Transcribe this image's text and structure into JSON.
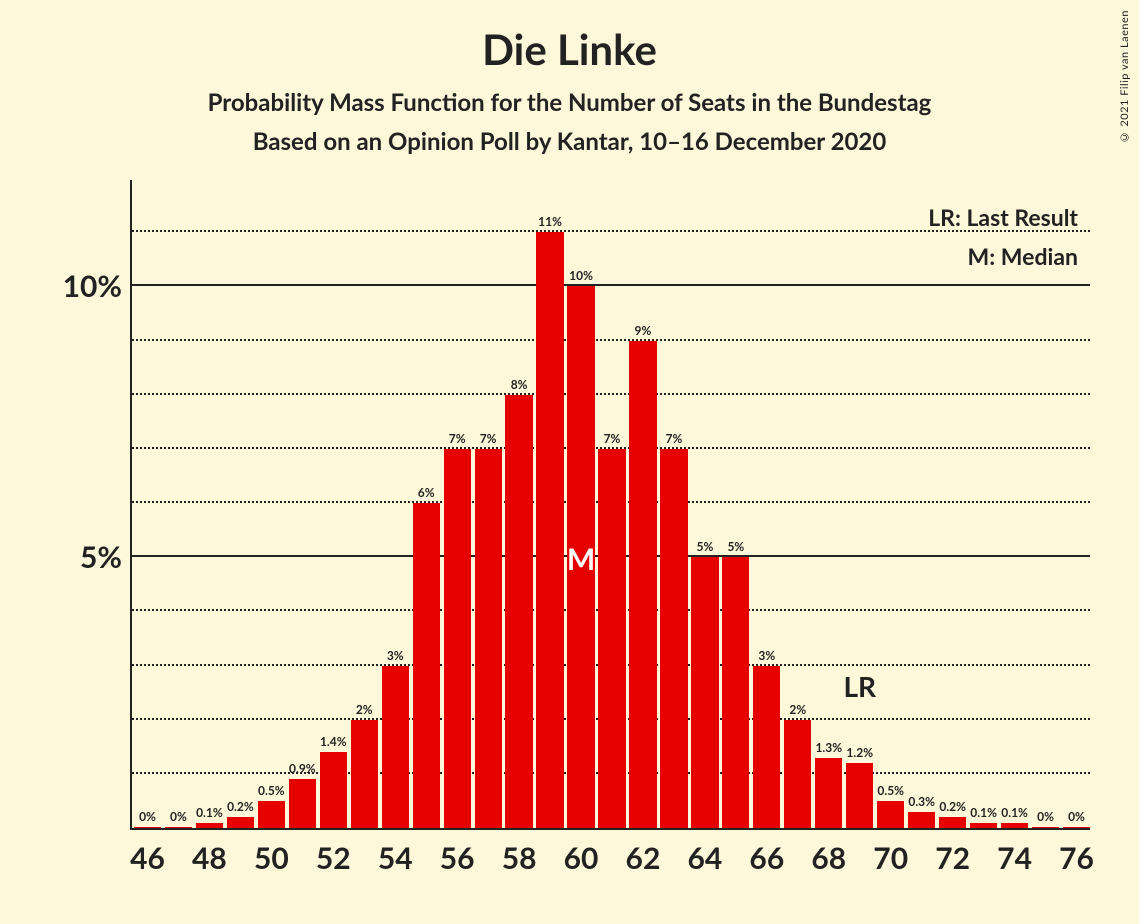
{
  "copyright": "© 2021 Filip van Laenen",
  "title": "Die Linke",
  "subtitle1": "Probability Mass Function for the Number of Seats in the Bundestag",
  "subtitle2": "Based on an Opinion Poll by Kantar, 10–16 December 2020",
  "legend": {
    "lr": "LR: Last Result",
    "m": "M: Median"
  },
  "chart": {
    "type": "bar",
    "bar_color": "#e60000",
    "background_color": "#fdf8da",
    "text_color": "#222222",
    "grid_solid_color": "#222222",
    "grid_dot_color": "#222222",
    "x_min": 46,
    "x_max": 76,
    "y_max_pct": 12,
    "y_major_ticks": [
      5,
      10
    ],
    "y_minor_step": 1,
    "x_tick_step": 2,
    "bar_width_ratio": 0.88,
    "median_seat": 60,
    "lr_seat": 69,
    "median_label": "M",
    "lr_label": "LR",
    "bars": [
      {
        "seat": 46,
        "pct": 0,
        "label": "0%"
      },
      {
        "seat": 47,
        "pct": 0,
        "label": "0%"
      },
      {
        "seat": 48,
        "pct": 0.1,
        "label": "0.1%"
      },
      {
        "seat": 49,
        "pct": 0.2,
        "label": "0.2%"
      },
      {
        "seat": 50,
        "pct": 0.5,
        "label": "0.5%"
      },
      {
        "seat": 51,
        "pct": 0.9,
        "label": "0.9%"
      },
      {
        "seat": 52,
        "pct": 1.4,
        "label": "1.4%"
      },
      {
        "seat": 53,
        "pct": 2,
        "label": "2%"
      },
      {
        "seat": 54,
        "pct": 3,
        "label": "3%"
      },
      {
        "seat": 55,
        "pct": 6,
        "label": "6%"
      },
      {
        "seat": 56,
        "pct": 7,
        "label": "7%"
      },
      {
        "seat": 57,
        "pct": 7,
        "label": "7%"
      },
      {
        "seat": 58,
        "pct": 8,
        "label": "8%"
      },
      {
        "seat": 59,
        "pct": 11,
        "label": "11%"
      },
      {
        "seat": 60,
        "pct": 10,
        "label": "10%"
      },
      {
        "seat": 61,
        "pct": 7,
        "label": "7%"
      },
      {
        "seat": 62,
        "pct": 9,
        "label": "9%"
      },
      {
        "seat": 63,
        "pct": 7,
        "label": "7%"
      },
      {
        "seat": 64,
        "pct": 5,
        "label": "5%"
      },
      {
        "seat": 65,
        "pct": 5,
        "label": "5%"
      },
      {
        "seat": 66,
        "pct": 3,
        "label": "3%"
      },
      {
        "seat": 67,
        "pct": 2,
        "label": "2%"
      },
      {
        "seat": 68,
        "pct": 1.3,
        "label": "1.3%"
      },
      {
        "seat": 69,
        "pct": 1.2,
        "label": "1.2%"
      },
      {
        "seat": 70,
        "pct": 0.5,
        "label": "0.5%"
      },
      {
        "seat": 71,
        "pct": 0.3,
        "label": "0.3%"
      },
      {
        "seat": 72,
        "pct": 0.2,
        "label": "0.2%"
      },
      {
        "seat": 73,
        "pct": 0.1,
        "label": "0.1%"
      },
      {
        "seat": 74,
        "pct": 0.1,
        "label": "0.1%"
      },
      {
        "seat": 75,
        "pct": 0,
        "label": "0%"
      },
      {
        "seat": 76,
        "pct": 0,
        "label": "0%"
      }
    ]
  }
}
